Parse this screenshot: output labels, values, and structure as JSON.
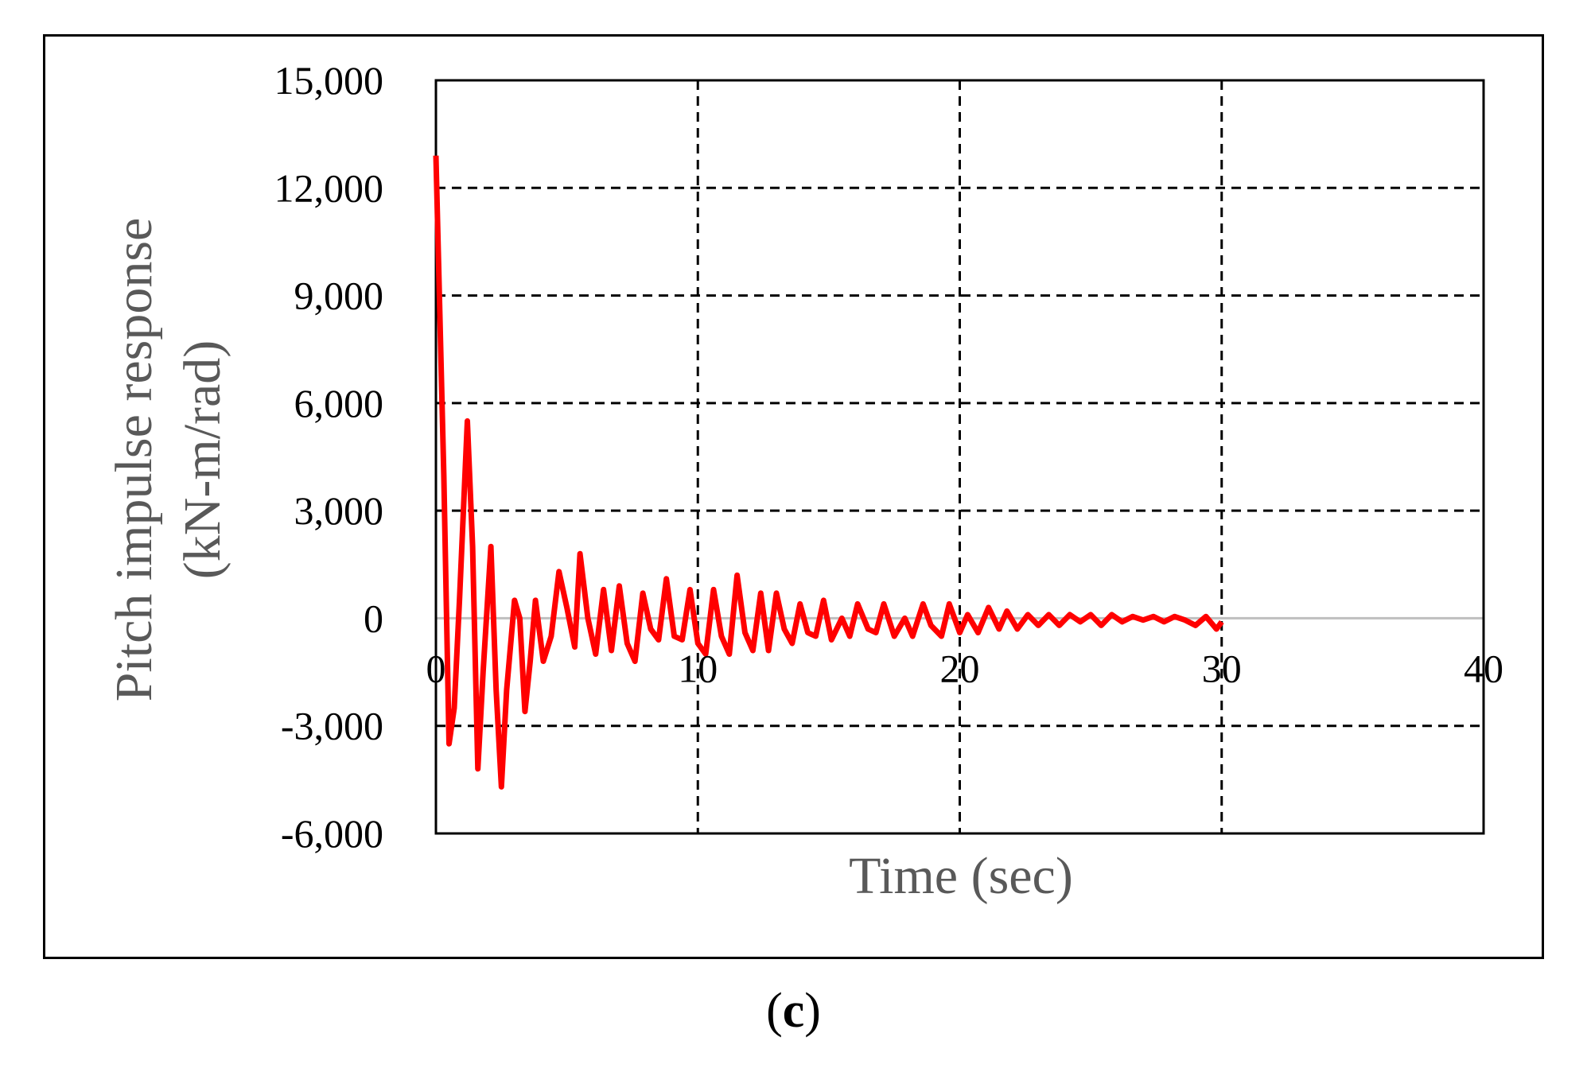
{
  "panel_label": {
    "open": "(",
    "letter": "c",
    "close": ")"
  },
  "colors": {
    "series": "#ff0000",
    "grid": "#000000",
    "zero_line": "#bfbfbf",
    "axis_title": "#595959"
  },
  "chart_data": {
    "type": "line",
    "title": "",
    "xlabel": "Time (sec)",
    "ylabel": [
      "Pitch impulse response",
      "(kN-m/rad)"
    ],
    "xlim": [
      0,
      40
    ],
    "ylim": [
      -6000,
      15000
    ],
    "xticks": [
      0,
      10,
      20,
      30,
      40
    ],
    "xtick_labels": [
      "0",
      "10",
      "20",
      "30",
      "40"
    ],
    "yticks": [
      15000,
      12000,
      9000,
      6000,
      3000,
      0,
      -3000,
      -6000
    ],
    "ytick_labels": [
      "15,000",
      "12,000",
      "9,000",
      "6,000",
      "3,000",
      "0",
      "-3,000",
      "-6,000"
    ],
    "grid": "dashed",
    "legend": "none",
    "series": [
      {
        "color": "#ff0000",
        "x": [
          0,
          0.3,
          0.5,
          0.7,
          0.9,
          1.2,
          1.4,
          1.6,
          1.8,
          2.1,
          2.3,
          2.5,
          2.7,
          3.0,
          3.2,
          3.4,
          3.6,
          3.8,
          4.1,
          4.4,
          4.7,
          5.0,
          5.3,
          5.5,
          5.8,
          6.1,
          6.4,
          6.7,
          7.0,
          7.3,
          7.6,
          7.9,
          8.2,
          8.5,
          8.8,
          9.1,
          9.4,
          9.7,
          10.0,
          10.3,
          10.6,
          10.9,
          11.2,
          11.5,
          11.8,
          12.1,
          12.4,
          12.7,
          13.0,
          13.3,
          13.6,
          13.9,
          14.2,
          14.5,
          14.8,
          15.1,
          15.5,
          15.8,
          16.1,
          16.5,
          16.8,
          17.1,
          17.5,
          17.9,
          18.2,
          18.6,
          18.9,
          19.3,
          19.6,
          20.0,
          20.3,
          20.7,
          21.1,
          21.5,
          21.8,
          22.2,
          22.6,
          23.0,
          23.4,
          23.8,
          24.2,
          24.6,
          25.0,
          25.4,
          25.8,
          26.2,
          26.6,
          27.0,
          27.4,
          27.8,
          28.2,
          28.6,
          29.0,
          29.4,
          29.8,
          30.0
        ],
        "y": [
          12900,
          4000,
          -3500,
          -2500,
          500,
          5500,
          2000,
          -4200,
          -1500,
          2000,
          -2000,
          -4700,
          -2000,
          500,
          0,
          -2600,
          -1200,
          500,
          -1200,
          -500,
          1300,
          300,
          -800,
          1800,
          0,
          -1000,
          800,
          -900,
          900,
          -700,
          -1200,
          700,
          -300,
          -600,
          1100,
          -500,
          -600,
          800,
          -700,
          -1000,
          800,
          -500,
          -1000,
          1200,
          -400,
          -900,
          700,
          -900,
          700,
          -300,
          -700,
          400,
          -400,
          -500,
          500,
          -600,
          0,
          -500,
          400,
          -300,
          -400,
          400,
          -500,
          0,
          -500,
          400,
          -200,
          -500,
          400,
          -400,
          100,
          -400,
          300,
          -300,
          200,
          -300,
          100,
          -200,
          100,
          -200,
          100,
          -100,
          100,
          -200,
          100,
          -100,
          50,
          -50,
          50,
          -100,
          50,
          -50,
          -200,
          50,
          -300,
          -100
        ]
      }
    ]
  }
}
